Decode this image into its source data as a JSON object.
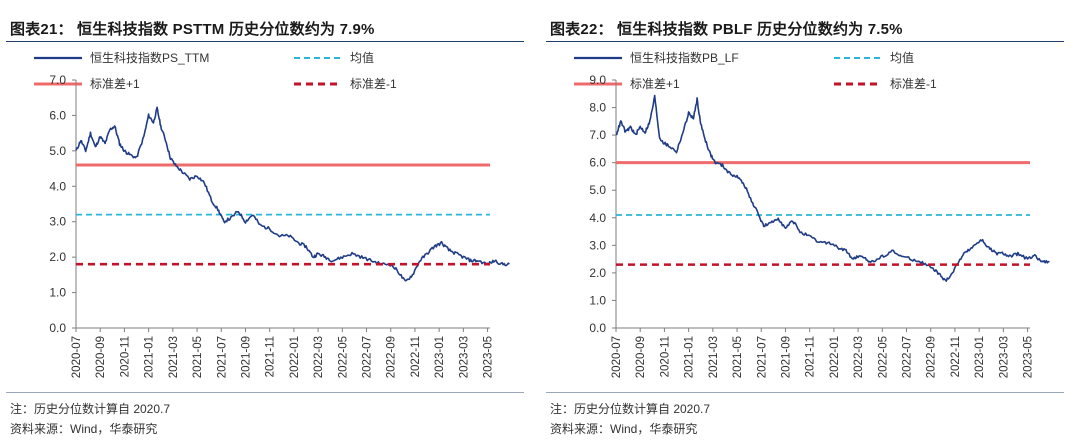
{
  "chart_data": [
    {
      "type": "line",
      "title": "图表21： 恒生科技指数 PSTTM 历史分位数约为 7.9%",
      "ylim": [
        0,
        7
      ],
      "yticks": [
        "0.0",
        "1.0",
        "2.0",
        "3.0",
        "4.0",
        "5.0",
        "6.0",
        "7.0"
      ],
      "xticks": [
        "2020-07",
        "2020-09",
        "2020-11",
        "2021-01",
        "2021-03",
        "2021-05",
        "2021-07",
        "2021-09",
        "2021-11",
        "2022-01",
        "2022-03",
        "2022-05",
        "2022-07",
        "2022-09",
        "2022-11",
        "2023-01",
        "2023-03",
        "2023-05"
      ],
      "legend": [
        "恒生科技指数PS_TTM",
        "均值",
        "标准差+1",
        "标准差-1"
      ],
      "series_anchors": [
        [
          0,
          5.0
        ],
        [
          0.2,
          5.3
        ],
        [
          0.4,
          5.0
        ],
        [
          0.6,
          5.5
        ],
        [
          0.8,
          5.1
        ],
        [
          1.0,
          5.4
        ],
        [
          1.2,
          5.2
        ],
        [
          1.4,
          5.6
        ],
        [
          1.6,
          5.7
        ],
        [
          1.8,
          5.2
        ],
        [
          2.0,
          5.0
        ],
        [
          2.2,
          4.9
        ],
        [
          2.5,
          4.8
        ],
        [
          2.8,
          5.4
        ],
        [
          3.0,
          6.0
        ],
        [
          3.2,
          5.8
        ],
        [
          3.35,
          6.2
        ],
        [
          3.5,
          5.7
        ],
        [
          3.7,
          5.3
        ],
        [
          3.9,
          4.8
        ],
        [
          4.1,
          4.6
        ],
        [
          4.4,
          4.4
        ],
        [
          4.7,
          4.2
        ],
        [
          5.0,
          4.3
        ],
        [
          5.3,
          4.1
        ],
        [
          5.6,
          3.6
        ],
        [
          5.9,
          3.3
        ],
        [
          6.1,
          3.0
        ],
        [
          6.4,
          3.1
        ],
        [
          6.7,
          3.3
        ],
        [
          7.0,
          3.0
        ],
        [
          7.3,
          3.2
        ],
        [
          7.6,
          2.9
        ],
        [
          8.0,
          2.8
        ],
        [
          8.4,
          2.6
        ],
        [
          8.8,
          2.6
        ],
        [
          9.2,
          2.4
        ],
        [
          9.5,
          2.3
        ],
        [
          9.8,
          2.0
        ],
        [
          10.0,
          2.1
        ],
        [
          10.3,
          2.0
        ],
        [
          10.6,
          1.9
        ],
        [
          11.0,
          2.0
        ],
        [
          11.4,
          2.1
        ],
        [
          11.8,
          2.0
        ],
        [
          12.2,
          1.9
        ],
        [
          12.6,
          1.8
        ],
        [
          13.0,
          1.8
        ],
        [
          13.3,
          1.6
        ],
        [
          13.6,
          1.3
        ],
        [
          13.9,
          1.5
        ],
        [
          14.2,
          1.9
        ],
        [
          14.5,
          2.1
        ],
        [
          14.8,
          2.3
        ],
        [
          15.1,
          2.4
        ],
        [
          15.4,
          2.2
        ],
        [
          15.7,
          2.1
        ],
        [
          16.0,
          2.0
        ],
        [
          16.3,
          1.9
        ],
        [
          16.6,
          1.9
        ],
        [
          17.0,
          1.8
        ],
        [
          17.3,
          1.9
        ],
        [
          17.6,
          1.8
        ],
        [
          17.9,
          1.8
        ]
      ],
      "lines": {
        "mean": 3.2,
        "std_plus_1": 4.6,
        "std_minus_1": 1.8
      },
      "notes": [
        "注：历史分位数计算自 2020.7",
        "资料来源：Wind，华泰研究"
      ]
    },
    {
      "type": "line",
      "title": "图表22： 恒生科技指数 PBLF 历史分位数约为 7.5%",
      "ylim": [
        0,
        9
      ],
      "yticks": [
        "0.0",
        "1.0",
        "2.0",
        "3.0",
        "4.0",
        "5.0",
        "6.0",
        "7.0",
        "8.0",
        "9.0"
      ],
      "xticks": [
        "2020-07",
        "2020-09",
        "2020-11",
        "2021-01",
        "2021-03",
        "2021-05",
        "2021-07",
        "2021-09",
        "2021-11",
        "2022-01",
        "2022-03",
        "2022-05",
        "2022-07",
        "2022-09",
        "2022-11",
        "2023-01",
        "2023-03",
        "2023-05"
      ],
      "legend": [
        "恒生科技指数PB_LF",
        "均值",
        "标准差+1",
        "标准差-1"
      ],
      "series_anchors": [
        [
          0,
          7.0
        ],
        [
          0.2,
          7.5
        ],
        [
          0.4,
          7.1
        ],
        [
          0.6,
          7.3
        ],
        [
          0.8,
          7.0
        ],
        [
          1.0,
          7.3
        ],
        [
          1.2,
          7.1
        ],
        [
          1.4,
          7.5
        ],
        [
          1.6,
          8.4
        ],
        [
          1.8,
          6.9
        ],
        [
          2.0,
          6.7
        ],
        [
          2.2,
          6.6
        ],
        [
          2.5,
          6.4
        ],
        [
          2.8,
          7.2
        ],
        [
          3.0,
          7.8
        ],
        [
          3.2,
          7.6
        ],
        [
          3.35,
          8.3
        ],
        [
          3.5,
          7.4
        ],
        [
          3.7,
          6.8
        ],
        [
          3.9,
          6.3
        ],
        [
          4.1,
          6.0
        ],
        [
          4.4,
          5.9
        ],
        [
          4.7,
          5.6
        ],
        [
          5.0,
          5.5
        ],
        [
          5.3,
          5.2
        ],
        [
          5.6,
          4.6
        ],
        [
          5.9,
          4.1
        ],
        [
          6.1,
          3.7
        ],
        [
          6.4,
          3.8
        ],
        [
          6.7,
          4.0
        ],
        [
          7.0,
          3.6
        ],
        [
          7.3,
          3.9
        ],
        [
          7.6,
          3.5
        ],
        [
          8.0,
          3.3
        ],
        [
          8.4,
          3.1
        ],
        [
          8.8,
          3.1
        ],
        [
          9.2,
          2.9
        ],
        [
          9.5,
          2.8
        ],
        [
          9.8,
          2.5
        ],
        [
          10.0,
          2.6
        ],
        [
          10.3,
          2.5
        ],
        [
          10.6,
          2.4
        ],
        [
          11.0,
          2.6
        ],
        [
          11.4,
          2.8
        ],
        [
          11.8,
          2.6
        ],
        [
          12.2,
          2.5
        ],
        [
          12.6,
          2.4
        ],
        [
          13.0,
          2.2
        ],
        [
          13.3,
          2.0
        ],
        [
          13.6,
          1.7
        ],
        [
          13.9,
          2.0
        ],
        [
          14.2,
          2.5
        ],
        [
          14.5,
          2.8
        ],
        [
          14.8,
          3.0
        ],
        [
          15.1,
          3.2
        ],
        [
          15.4,
          2.9
        ],
        [
          15.7,
          2.7
        ],
        [
          16.0,
          2.7
        ],
        [
          16.3,
          2.6
        ],
        [
          16.6,
          2.7
        ],
        [
          17.0,
          2.5
        ],
        [
          17.3,
          2.6
        ],
        [
          17.6,
          2.4
        ],
        [
          17.9,
          2.4
        ]
      ],
      "lines": {
        "mean": 4.1,
        "std_plus_1": 6.0,
        "std_minus_1": 2.3
      },
      "notes": [
        "注：历史分位数计算自 2020.7",
        "资料来源：Wind，华泰研究"
      ]
    }
  ],
  "colors": {
    "series": "#1f3c88",
    "mean": "#29b6d8",
    "std_plus": "#ef6b6b",
    "std_minus": "#c3122a",
    "axis": "#7f7f7f"
  }
}
